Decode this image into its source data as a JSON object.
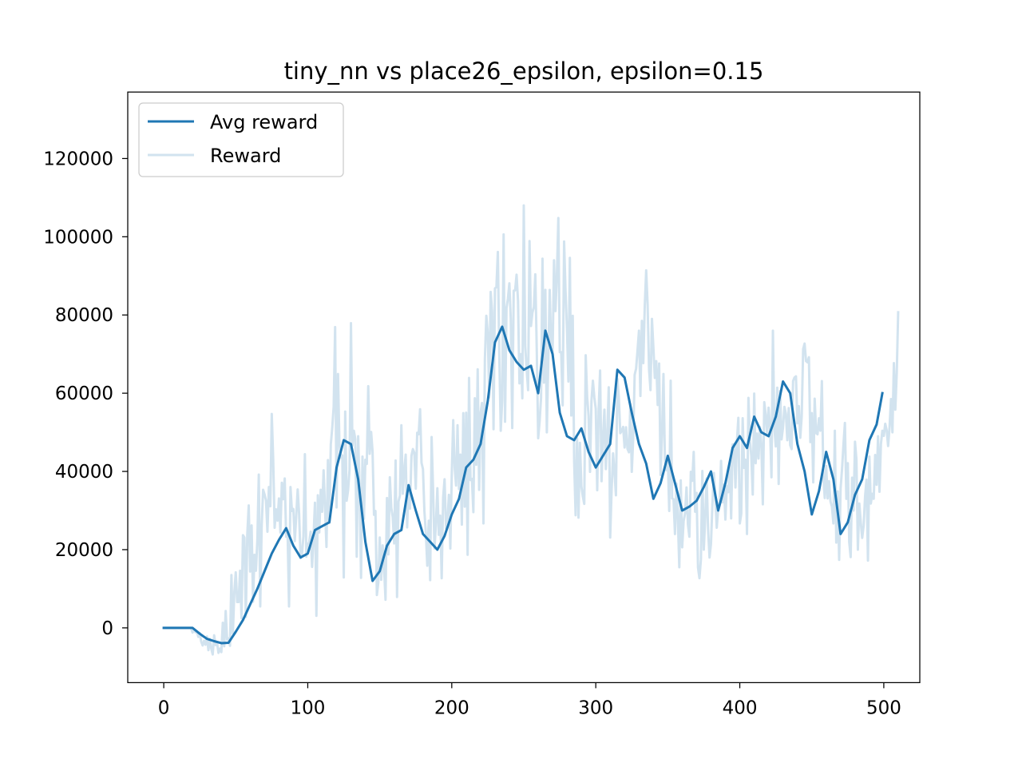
{
  "chart_data": {
    "type": "line",
    "title": "tiny_nn vs place26_epsilon, epsilon=0.15",
    "xlabel": "",
    "ylabel": "",
    "xlim": [
      -25,
      525
    ],
    "ylim": [
      -14000,
      137000
    ],
    "xticks": [
      0,
      100,
      200,
      300,
      400,
      500
    ],
    "xtick_labels": [
      "0",
      "100",
      "200",
      "300",
      "400",
      "500"
    ],
    "yticks": [
      0,
      20000,
      40000,
      60000,
      80000,
      100000,
      120000
    ],
    "ytick_labels": [
      "0",
      "20000",
      "40000",
      "60000",
      "80000",
      "100000",
      "120000"
    ],
    "grid": false,
    "legend_position": "top-left",
    "colors": {
      "avg": "#1f77b4",
      "raw": "#d2e3ef"
    },
    "series": [
      {
        "name": "Avg reward",
        "x": [
          0,
          10,
          20,
          25,
          30,
          35,
          40,
          45,
          50,
          55,
          60,
          65,
          70,
          75,
          80,
          85,
          90,
          95,
          100,
          105,
          110,
          115,
          120,
          125,
          130,
          135,
          140,
          145,
          150,
          155,
          160,
          165,
          170,
          175,
          180,
          185,
          190,
          195,
          200,
          205,
          210,
          215,
          220,
          225,
          230,
          235,
          240,
          245,
          250,
          255,
          260,
          265,
          270,
          275,
          280,
          285,
          290,
          295,
          300,
          305,
          310,
          315,
          320,
          325,
          330,
          335,
          340,
          345,
          350,
          355,
          360,
          365,
          370,
          375,
          380,
          385,
          390,
          395,
          400,
          405,
          410,
          415,
          420,
          425,
          430,
          435,
          440,
          445,
          450,
          455,
          460,
          465,
          470,
          475,
          480,
          485,
          490,
          495,
          499
        ],
        "values": [
          0,
          0,
          0,
          -1500,
          -2800,
          -3400,
          -3900,
          -3800,
          -1000,
          2000,
          6000,
          10000,
          14500,
          19000,
          22500,
          25500,
          21000,
          18000,
          19000,
          25000,
          26000,
          27000,
          41000,
          48000,
          47000,
          38000,
          22000,
          12000,
          14500,
          21000,
          24000,
          25000,
          36500,
          30000,
          24000,
          22000,
          20000,
          23500,
          29000,
          33000,
          41000,
          43000,
          47000,
          58000,
          73000,
          77000,
          71000,
          68000,
          66000,
          67000,
          60000,
          76000,
          70000,
          55000,
          49000,
          48000,
          51000,
          45000,
          41000,
          44000,
          47000,
          66000,
          64000,
          55000,
          47000,
          42000,
          33000,
          37000,
          44000,
          37000,
          30000,
          31000,
          32500,
          36000,
          40000,
          30000,
          37000,
          46000,
          49000,
          46000,
          54000,
          50000,
          49000,
          54000,
          63000,
          60000,
          47000,
          40000,
          29000,
          35000,
          45000,
          38000,
          24000,
          27000,
          34000,
          38000,
          48000,
          52000,
          60000
        ]
      },
      {
        "name": "Reward",
        "values": [
          0,
          0,
          0,
          0,
          0,
          0,
          0,
          0,
          0,
          0,
          0,
          0,
          0,
          0,
          0,
          0,
          0,
          0,
          0,
          0,
          -1200,
          -400,
          -1100,
          -900,
          -2300,
          -1300,
          -3500,
          -4500,
          -3300,
          -4300,
          -2200,
          -5700,
          -2800,
          -5300,
          -6800,
          -1900,
          -4400,
          -3800,
          -6400,
          -5300,
          -6200,
          1300,
          -4700,
          4300,
          -3000,
          -2700,
          -4600,
          13500,
          -1400,
          9000,
          14200,
          6600,
          6600,
          14600,
          2500,
          23700,
          23100,
          2800,
          23800,
          31300,
          14400,
          26200,
          6700,
          18700,
          14600,
          22400,
          39200,
          5500,
          26100,
          35300,
          34100,
          32600,
          24600,
          36000,
          31100,
          54700,
          43100,
          25600,
          30300,
          27400,
          33100,
          24400,
          37100,
          32900,
          38200,
          23300,
          24300,
          5500,
          36000,
          29900,
          30400,
          22200,
          28700,
          35400,
          29200,
          17800,
          18900,
          23400,
          44400,
          18200,
          21300,
          21900,
          24600,
          15600,
          23200,
          32000,
          3100,
          33900,
          24400,
          35300,
          29700,
          40300,
          30500,
          20700,
          42900,
          26800,
          46900,
          51200,
          56500,
          76900,
          30800,
          64900,
          46900,
          43500,
          44100,
          12900,
          55300,
          32500,
          35200,
          40400,
          77900,
          46600,
          50400,
          48300,
          18200,
          49000,
          35800,
          12800,
          43800,
          27900,
          43000,
          41900,
          61800,
          44500,
          50100,
          45100,
          28900,
          29900,
          8400,
          11600,
          23100,
          12300,
          21100,
          15200,
          7200,
          33200,
          18800,
          38500,
          30700,
          28300,
          21600,
          42800,
          7900,
          32300,
          33800,
          51800,
          34300,
          40300,
          44300,
          25700,
          36400,
          30500,
          44000,
          45700,
          44800,
          35600,
          49900,
          49500,
          55900,
          42200,
          40600,
          29800,
          24300,
          15900,
          27400,
          12200,
          48800,
          35600,
          20300,
          26500,
          35700,
          23800,
          28700,
          12700,
          33300,
          38000,
          25500,
          26800,
          34000,
          20300,
          39200,
          53100,
          41000,
          36400,
          51800,
          35500,
          44300,
          26400,
          54900,
          31000,
          55000,
          18700,
          63900,
          37800,
          38100,
          29600,
          58700,
          41700,
          66100,
          35300,
          55000,
          57500,
          26700,
          68800,
          79800,
          75300,
          58900,
          85900,
          81000,
          50800,
          86800,
          87100,
          96100,
          69800,
          50400,
          58100,
          100600,
          52700,
          81800,
          84200,
          88100,
          78600,
          51100,
          86200,
          86300,
          90300,
          83600,
          62500,
          70000,
          58700,
          108000,
          72100,
          66100,
          60800,
          98900,
          77200,
          80600,
          82000,
          90400,
          71400,
          48500,
          52800,
          58800,
          94400,
          62700,
          86400,
          50000,
          68100,
          86400,
          72500,
          70000,
          94000,
          81000,
          90200,
          104800,
          70500,
          70500,
          56900,
          98800,
          86000,
          76300,
          63000,
          94600,
          54300,
          79800,
          42400,
          28800,
          48500,
          28200,
          47300,
          36200,
          33600,
          31700,
          69700,
          59100,
          54200,
          39900,
          58000,
          63200,
          58900,
          56000,
          35200,
          55900,
          65800,
          37500,
          48700,
          55800,
          40600,
          50000,
          61500,
          23100,
          35300,
          44600,
          39800,
          33900,
          63600,
          59000,
          49800,
          50300,
          51400,
          46100,
          51300,
          45800,
          44900,
          57200,
          39900,
          48600,
          64700,
          66300,
          71000,
          76000,
          59300,
          78500,
          67700,
          82200,
          91400,
          82600,
          66000,
          60800,
          79000,
          71700,
          63900,
          68200,
          57000,
          67600,
          39100,
          49300,
          64900,
          43000,
          40300,
          43700,
          29900,
          63200,
          33100,
          32900,
          24000,
          36900,
          27900,
          15500,
          37700,
          20600,
          27300,
          29300,
          35900,
          26400,
          23300,
          39900,
          37600,
          45000,
          29700,
          34500,
          15400,
          12700,
          17500,
          40100,
          20000,
          28200,
          38200,
          25000,
          18000,
          21500,
          31800,
          39600,
          33500,
          25600,
          30600,
          32300,
          42700,
          32100,
          36600,
          27700,
          36200,
          34700,
          42200,
          28000,
          46900,
          47000,
          35900,
          47600,
          53700,
          26700,
          29100,
          53600,
          40900,
          43000,
          24000,
          58800,
          48100,
          44000,
          34100,
          59900,
          42100,
          49700,
          43300,
          51400,
          46800,
          31600,
          57700,
          54500,
          49500,
          56300,
          51200,
          38500,
          76000,
          51300,
          46400,
          61400,
          36800,
          60600,
          48200,
          51200,
          56500,
          54800,
          48000,
          56200,
          46700,
          45700,
          63100,
          64000,
          64300,
          52300,
          56700,
          48600,
          54100,
          71300,
          72700,
          68200,
          67900,
          69200,
          47500,
          54900,
          37200,
          58600,
          49800,
          49500,
          53600,
          50400,
          63100,
          38900,
          33200,
          41400,
          33100,
          37500,
          32300,
          31000,
          26700,
          50400,
          21800,
          34900,
          17400,
          35600,
          40600,
          46900,
          52400,
          33000,
          42100,
          21900,
          18100,
          38400,
          30000,
          47600,
          43000,
          20000,
          31800,
          27000,
          23000,
          26200,
          33600,
          37900,
          17200,
          43800,
          31800,
          34300,
          33000,
          44200,
          36600,
          49000,
          34800,
          47000,
          50400,
          49100,
          52200,
          50500,
          46500,
          51300,
          58500,
          50000,
          67700,
          55800,
          65200,
          81000
        ]
      }
    ],
    "legend": [
      {
        "label": "Avg reward",
        "series_index": 0
      },
      {
        "label": "Reward",
        "series_index": 1
      }
    ]
  }
}
